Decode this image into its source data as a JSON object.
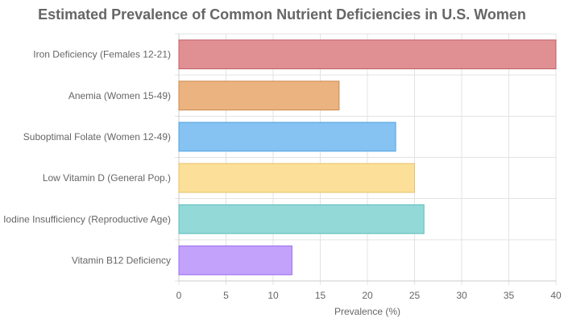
{
  "chart_data": {
    "type": "bar",
    "orientation": "horizontal",
    "title": "Estimated Prevalence of Common Nutrient Deficiencies in U.S. Women",
    "xlabel": "Prevalence (%)",
    "ylabel": "",
    "xlim": [
      0,
      40
    ],
    "x_ticks": [
      0,
      5,
      10,
      15,
      20,
      25,
      30,
      35,
      40
    ],
    "grid": true,
    "legend": "none",
    "categories": [
      "Iron Deficiency (Females 12-21)",
      "Anemia (Women 15-49)",
      "Suboptimal Folate (Women 12-49)",
      "Low Vitamin D (General Pop.)",
      "Iodine Insufficiency (Reproductive Age)",
      "Vitamin B12 Deficiency"
    ],
    "values": [
      40,
      17,
      23,
      25,
      26,
      12
    ],
    "colors": [
      {
        "fill": "#e09092",
        "stroke": "#c06066"
      },
      {
        "fill": "#ebb37f",
        "stroke": "#c98a4e"
      },
      {
        "fill": "#86c3f2",
        "stroke": "#4fa2e0"
      },
      {
        "fill": "#fce09a",
        "stroke": "#e6c165"
      },
      {
        "fill": "#92d9d8",
        "stroke": "#5cbcba"
      },
      {
        "fill": "#c2a2fb",
        "stroke": "#9b6ff0"
      }
    ]
  }
}
